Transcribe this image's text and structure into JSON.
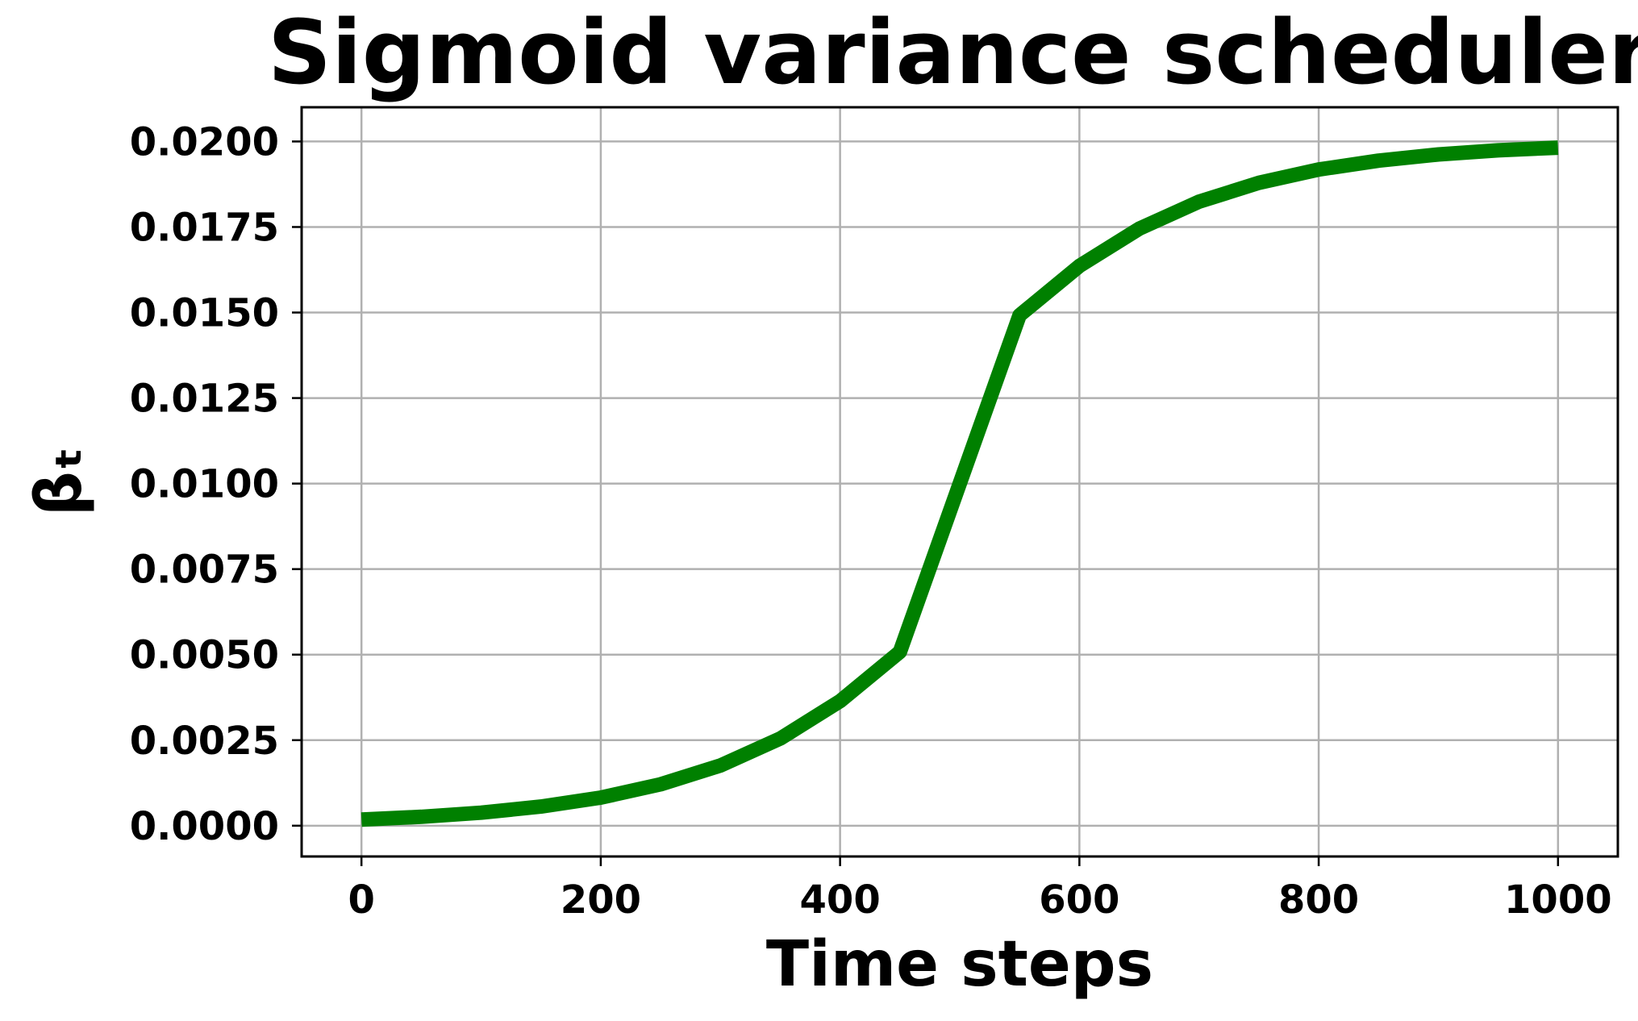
{
  "chart_data": {
    "type": "line",
    "title": "Sigmoid variance scheduler",
    "xlabel": "Time steps",
    "ylabel": "βₜ",
    "xlim": [
      -50,
      1050
    ],
    "ylim": [
      -0.0009,
      0.021
    ],
    "x_ticks": [
      0,
      200,
      400,
      600,
      800,
      1000
    ],
    "y_ticks": [
      0.0,
      0.0025,
      0.005,
      0.0075,
      0.01,
      0.0125,
      0.015,
      0.0175,
      0.02
    ],
    "x_tick_labels": [
      "0",
      "200",
      "400",
      "600",
      "800",
      "1000"
    ],
    "y_tick_labels": [
      "0.0000",
      "0.0025",
      "0.0050",
      "0.0075",
      "0.0100",
      "0.0125",
      "0.0150",
      "0.0175",
      "0.0200"
    ],
    "grid": true,
    "series": [
      {
        "color": "#008000",
        "x": [
          0,
          50,
          100,
          150,
          200,
          250,
          300,
          350,
          400,
          450,
          500,
          550,
          600,
          650,
          700,
          750,
          800,
          850,
          900,
          950,
          1000
        ],
        "y": [
          0.00018,
          0.00026,
          0.00038,
          0.00056,
          0.00082,
          0.00121,
          0.00176,
          0.00255,
          0.00364,
          0.00508,
          0.01,
          0.01492,
          0.01636,
          0.01745,
          0.01824,
          0.01879,
          0.01918,
          0.01944,
          0.01962,
          0.01974,
          0.01982
        ]
      }
    ]
  }
}
